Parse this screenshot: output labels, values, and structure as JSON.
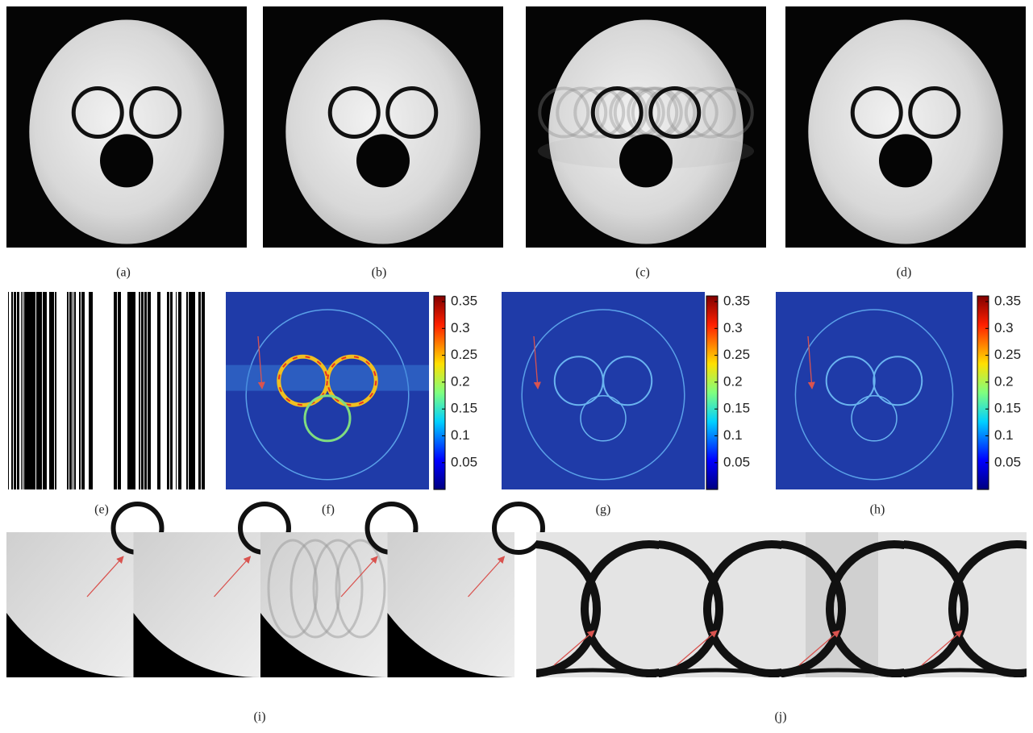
{
  "panels": [
    {
      "label": "(a)"
    },
    {
      "label": "(b)"
    },
    {
      "label": "(c)"
    },
    {
      "label": "(d)"
    },
    {
      "label": "(e)"
    },
    {
      "label": "(f)"
    },
    {
      "label": "(g)"
    },
    {
      "label": "(h)"
    },
    {
      "label": "(i)"
    },
    {
      "label": "(j)"
    }
  ],
  "colorbar_ticks": [
    0.35,
    0.3,
    0.25,
    0.2,
    0.15,
    0.1,
    0.05
  ]
}
